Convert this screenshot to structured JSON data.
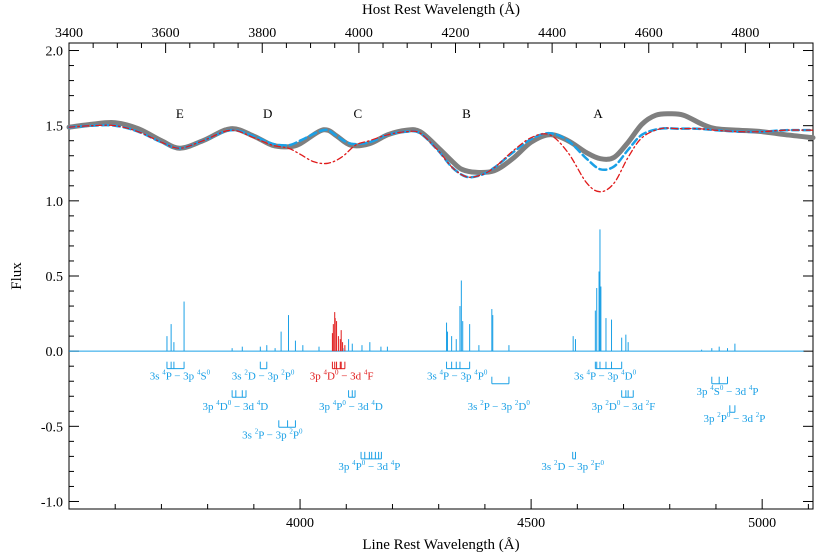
{
  "chart_data": {
    "type": "line",
    "title": "",
    "xlabel_bottom": "Line Rest Wavelength (Å)",
    "xlabel_top": "Host Rest Wavelength (Å)",
    "ylabel": "Flux",
    "xlim_bottom": [
      3500,
      5110
    ],
    "xlim_top": [
      3400,
      4940
    ],
    "ylim": [
      -1.05,
      2.05
    ],
    "xticks_bottom": [
      4000,
      4500,
      5000
    ],
    "xticks_top": [
      3400,
      3600,
      3800,
      4000,
      4200,
      4400,
      4600,
      4800
    ],
    "yticks": [
      -1.0,
      -0.5,
      0.0,
      0.5,
      1.0,
      1.5,
      2.0
    ],
    "feature_labels": [
      {
        "name": "E",
        "x": 3740,
        "y": 1.55
      },
      {
        "name": "D",
        "x": 3930,
        "y": 1.55
      },
      {
        "name": "C",
        "x": 4125,
        "y": 1.55
      },
      {
        "name": "B",
        "x": 4360,
        "y": 1.55
      },
      {
        "name": "A",
        "x": 4645,
        "y": 1.55
      }
    ],
    "series": [
      {
        "color": "#7f7f7f",
        "style": "thick",
        "x": [
          3500,
          3550,
          3600,
          3650,
          3700,
          3740,
          3790,
          3850,
          3900,
          3940,
          3975,
          4000,
          4040,
          4060,
          4080,
          4110,
          4150,
          4190,
          4230,
          4260,
          4300,
          4330,
          4350,
          4380,
          4420,
          4460,
          4500,
          4540,
          4580,
          4620,
          4650,
          4680,
          4710,
          4740,
          4770,
          4800,
          4830,
          4870,
          4900,
          4950,
          5000,
          5050,
          5110
        ],
        "y": [
          1.49,
          1.51,
          1.52,
          1.48,
          1.4,
          1.35,
          1.4,
          1.48,
          1.43,
          1.37,
          1.36,
          1.38,
          1.46,
          1.47,
          1.43,
          1.37,
          1.38,
          1.44,
          1.47,
          1.46,
          1.35,
          1.26,
          1.21,
          1.19,
          1.2,
          1.28,
          1.39,
          1.44,
          1.4,
          1.32,
          1.28,
          1.29,
          1.39,
          1.51,
          1.57,
          1.58,
          1.57,
          1.51,
          1.48,
          1.47,
          1.46,
          1.44,
          1.42
        ]
      },
      {
        "color": "#1aa0e6",
        "style": "dashed",
        "x": [
          3500,
          3550,
          3600,
          3650,
          3700,
          3740,
          3790,
          3850,
          3900,
          3940,
          3975,
          4000,
          4040,
          4060,
          4080,
          4110,
          4150,
          4190,
          4230,
          4260,
          4300,
          4330,
          4360,
          4390,
          4420,
          4460,
          4500,
          4540,
          4580,
          4620,
          4650,
          4680,
          4710,
          4740,
          4780,
          4820,
          4860,
          4900,
          4950,
          5000,
          5050,
          5110
        ],
        "y": [
          1.49,
          1.5,
          1.5,
          1.46,
          1.39,
          1.35,
          1.4,
          1.47,
          1.43,
          1.38,
          1.37,
          1.4,
          1.46,
          1.47,
          1.43,
          1.38,
          1.39,
          1.44,
          1.46,
          1.45,
          1.33,
          1.22,
          1.16,
          1.17,
          1.22,
          1.32,
          1.41,
          1.45,
          1.4,
          1.28,
          1.21,
          1.23,
          1.34,
          1.44,
          1.48,
          1.48,
          1.48,
          1.47,
          1.46,
          1.46,
          1.47,
          1.47
        ]
      },
      {
        "color": "#e01b1b",
        "style": "dashdot",
        "x": [
          3500,
          3550,
          3600,
          3650,
          3700,
          3740,
          3790,
          3850,
          3900,
          3940,
          3975,
          4000,
          4030,
          4060,
          4090,
          4120,
          4150,
          4190,
          4230,
          4260,
          4300,
          4330,
          4360,
          4390,
          4420,
          4460,
          4500,
          4540,
          4580,
          4620,
          4650,
          4680,
          4710,
          4740,
          4780,
          4820,
          4860,
          4900,
          4950,
          5000,
          5050,
          5110
        ],
        "y": [
          1.49,
          1.5,
          1.5,
          1.46,
          1.39,
          1.35,
          1.4,
          1.47,
          1.42,
          1.37,
          1.35,
          1.31,
          1.26,
          1.25,
          1.29,
          1.37,
          1.4,
          1.44,
          1.46,
          1.45,
          1.33,
          1.22,
          1.16,
          1.17,
          1.22,
          1.33,
          1.42,
          1.44,
          1.32,
          1.12,
          1.06,
          1.12,
          1.29,
          1.42,
          1.48,
          1.48,
          1.48,
          1.47,
          1.46,
          1.46,
          1.47,
          1.47
        ]
      }
    ],
    "emission_lines": [
      {
        "x": 3712,
        "h": 0.1
      },
      {
        "x": 3721,
        "h": 0.18
      },
      {
        "x": 3749,
        "h": 0.33
      },
      {
        "x": 3727,
        "h": 0.06
      },
      {
        "x": 3853,
        "h": 0.02
      },
      {
        "x": 3875,
        "h": 0.03
      },
      {
        "x": 3914,
        "h": 0.03
      },
      {
        "x": 3928,
        "h": 0.04
      },
      {
        "x": 3946,
        "h": 0.02
      },
      {
        "x": 3959,
        "h": 0.13
      },
      {
        "x": 3975,
        "h": 0.24
      },
      {
        "x": 3990,
        "h": 0.07
      },
      {
        "x": 4006,
        "h": 0.04
      },
      {
        "x": 4041,
        "h": 0.03
      },
      {
        "x": 4093,
        "h": 0.02
      },
      {
        "x": 4105,
        "h": 0.08
      },
      {
        "x": 4113,
        "h": 0.05
      },
      {
        "x": 4134,
        "h": 0.04
      },
      {
        "x": 4151,
        "h": 0.06
      },
      {
        "x": 4175,
        "h": 0.03
      },
      {
        "x": 4189,
        "h": 0.03
      },
      {
        "x": 4317,
        "h": 0.19
      },
      {
        "x": 4319,
        "h": 0.13
      },
      {
        "x": 4328,
        "h": 0.1
      },
      {
        "x": 4338,
        "h": 0.08
      },
      {
        "x": 4346,
        "h": 0.3
      },
      {
        "x": 4349,
        "h": 0.47
      },
      {
        "x": 4352,
        "h": 0.2
      },
      {
        "x": 4367,
        "h": 0.18
      },
      {
        "x": 4387,
        "h": 0.04
      },
      {
        "x": 4415,
        "h": 0.28
      },
      {
        "x": 4417,
        "h": 0.24
      },
      {
        "x": 4452,
        "h": 0.04
      },
      {
        "x": 4591,
        "h": 0.1
      },
      {
        "x": 4596,
        "h": 0.08
      },
      {
        "x": 4639,
        "h": 0.27
      },
      {
        "x": 4642,
        "h": 0.42
      },
      {
        "x": 4647,
        "h": 0.53
      },
      {
        "x": 4649,
        "h": 0.81
      },
      {
        "x": 4651,
        "h": 0.43
      },
      {
        "x": 4662,
        "h": 0.22
      },
      {
        "x": 4674,
        "h": 0.21
      },
      {
        "x": 4696,
        "h": 0.09
      },
      {
        "x": 4705,
        "h": 0.11
      },
      {
        "x": 4710,
        "h": 0.06
      },
      {
        "x": 4869,
        "h": 0.01
      },
      {
        "x": 4891,
        "h": 0.02
      },
      {
        "x": 4907,
        "h": 0.03
      },
      {
        "x": 4925,
        "h": 0.02
      },
      {
        "x": 4941,
        "h": 0.05
      }
    ],
    "red_lines": [
      {
        "x": 4070,
        "h": 0.12
      },
      {
        "x": 4072,
        "h": 0.18
      },
      {
        "x": 4075,
        "h": 0.26
      },
      {
        "x": 4076,
        "h": 0.22
      },
      {
        "x": 4079,
        "h": 0.2
      },
      {
        "x": 4083,
        "h": 0.1
      },
      {
        "x": 4087,
        "h": 0.08
      },
      {
        "x": 4089,
        "h": 0.14
      },
      {
        "x": 4092,
        "h": 0.06
      },
      {
        "x": 4097,
        "h": 0.04
      }
    ],
    "multiplets": [
      {
        "ticks": [
          3712,
          3721,
          3727,
          3749
        ],
        "y": -0.07,
        "red": false,
        "label": [
          [
            "3s ",
            ""
          ],
          [
            "4",
            "s"
          ],
          [
            "P − 3p ",
            ""
          ],
          [
            "4",
            "s"
          ],
          [
            "S",
            ""
          ],
          [
            "0",
            "s"
          ]
        ],
        "lx": 3740,
        "ly": -0.19
      },
      {
        "ticks": [
          3914,
          3928
        ],
        "y": -0.07,
        "red": false,
        "label": [
          [
            "3s ",
            ""
          ],
          [
            "2",
            "s"
          ],
          [
            "D − 3p ",
            ""
          ],
          [
            "2",
            "s"
          ],
          [
            "P",
            ""
          ],
          [
            "0",
            "s"
          ]
        ],
        "lx": 3920,
        "ly": -0.19
      },
      {
        "ticks": [
          4070,
          4075,
          4079,
          4087,
          4089,
          4097
        ],
        "y": -0.07,
        "red": true,
        "label": [
          [
            "3p ",
            ""
          ],
          [
            "4",
            "s"
          ],
          [
            "D",
            ""
          ],
          [
            "0",
            "s"
          ],
          [
            " − 3d ",
            ""
          ],
          [
            "4",
            "s"
          ],
          [
            "F",
            ""
          ]
        ],
        "lx": 4090,
        "ly": -0.19
      },
      {
        "ticks": [
          4317,
          4328,
          4338,
          4346,
          4367
        ],
        "y": -0.07,
        "red": false,
        "label": [
          [
            "3s ",
            ""
          ],
          [
            "4",
            "s"
          ],
          [
            "P − 3p ",
            ""
          ],
          [
            "4",
            "s"
          ],
          [
            "P",
            ""
          ],
          [
            "0",
            "s"
          ]
        ],
        "lx": 4340,
        "ly": -0.19
      },
      {
        "ticks": [
          4639,
          4642,
          4649,
          4662,
          4674,
          4696
        ],
        "y": -0.07,
        "red": false,
        "label": [
          [
            "3s ",
            ""
          ],
          [
            "4",
            "s"
          ],
          [
            "P − 3p ",
            ""
          ],
          [
            "4",
            "s"
          ],
          [
            "D",
            ""
          ],
          [
            "0",
            "s"
          ]
        ],
        "lx": 4660,
        "ly": -0.19
      },
      {
        "ticks": [
          3853,
          3861,
          3875,
          3883
        ],
        "y": -0.26,
        "red": false,
        "label": [
          [
            "3p ",
            ""
          ],
          [
            "4",
            "s"
          ],
          [
            "D",
            ""
          ],
          [
            "0",
            "s"
          ],
          [
            " − 3d ",
            ""
          ],
          [
            "4",
            "s"
          ],
          [
            "D",
            ""
          ]
        ],
        "lx": 3860,
        "ly": -0.39
      },
      {
        "ticks": [
          4105,
          4113,
          4119
        ],
        "y": -0.26,
        "red": false,
        "label": [
          [
            "3p ",
            ""
          ],
          [
            "4",
            "s"
          ],
          [
            "P",
            ""
          ],
          [
            "0",
            "s"
          ],
          [
            " − 3d ",
            ""
          ],
          [
            "4",
            "s"
          ],
          [
            "D",
            ""
          ]
        ],
        "lx": 4110,
        "ly": -0.39
      },
      {
        "ticks": [
          4415,
          4452
        ],
        "y": -0.17,
        "red": false,
        "label": [
          [
            "3s ",
            ""
          ],
          [
            "2",
            "s"
          ],
          [
            "P − 3p ",
            ""
          ],
          [
            "2",
            "s"
          ],
          [
            "D",
            ""
          ],
          [
            "0",
            "s"
          ]
        ],
        "lx": 4430,
        "ly": -0.39
      },
      {
        "ticks": [
          4696,
          4705,
          4710,
          4721
        ],
        "y": -0.26,
        "red": false,
        "label": [
          [
            "3p ",
            ""
          ],
          [
            "2",
            "s"
          ],
          [
            "D",
            ""
          ],
          [
            "0",
            "s"
          ],
          [
            " − 3d ",
            ""
          ],
          [
            "2",
            "s"
          ],
          [
            "F",
            ""
          ]
        ],
        "lx": 4700,
        "ly": -0.39
      },
      {
        "ticks": [
          4891,
          4907,
          4925
        ],
        "y": -0.17,
        "red": false,
        "label": [
          [
            "3p ",
            ""
          ],
          [
            "4",
            "s"
          ],
          [
            "S",
            ""
          ],
          [
            "0",
            "s"
          ],
          [
            " − 3d ",
            ""
          ],
          [
            "4",
            "s"
          ],
          [
            "P",
            ""
          ]
        ],
        "lx": 4925,
        "ly": -0.29
      },
      {
        "ticks": [
          4930,
          4941
        ],
        "y": -0.36,
        "red": false,
        "label": [
          [
            "3p ",
            ""
          ],
          [
            "2",
            "s"
          ],
          [
            "P",
            ""
          ],
          [
            "0",
            "s"
          ],
          [
            " − 3d ",
            ""
          ],
          [
            "2",
            "s"
          ],
          [
            "P",
            ""
          ]
        ],
        "lx": 4940,
        "ly": -0.47
      },
      {
        "ticks": [
          3954,
          3973,
          3990
        ],
        "y": -0.46,
        "red": false,
        "label": [
          [
            "3s ",
            ""
          ],
          [
            "2",
            "s"
          ],
          [
            "P − 3p ",
            ""
          ],
          [
            "2",
            "s"
          ],
          [
            "P",
            ""
          ],
          [
            "0",
            "s"
          ]
        ],
        "lx": 3940,
        "ly": -0.58
      },
      {
        "ticks": [
          4132,
          4140,
          4150,
          4155,
          4163,
          4170,
          4176
        ],
        "y": -0.67,
        "red": false,
        "label": [
          [
            "3p ",
            ""
          ],
          [
            "4",
            "s"
          ],
          [
            "P",
            ""
          ],
          [
            "0",
            "s"
          ],
          [
            " − 3d ",
            ""
          ],
          [
            "4",
            "s"
          ],
          [
            "P",
            ""
          ]
        ],
        "lx": 4150,
        "ly": -0.79
      },
      {
        "ticks": [
          4590,
          4596
        ],
        "y": -0.67,
        "red": false,
        "label": [
          [
            "3s ",
            ""
          ],
          [
            "2",
            "s"
          ],
          [
            "D − 3p ",
            ""
          ],
          [
            "2",
            "s"
          ],
          [
            "F",
            ""
          ],
          [
            "0",
            "s"
          ]
        ],
        "lx": 4590,
        "ly": -0.79
      }
    ]
  }
}
